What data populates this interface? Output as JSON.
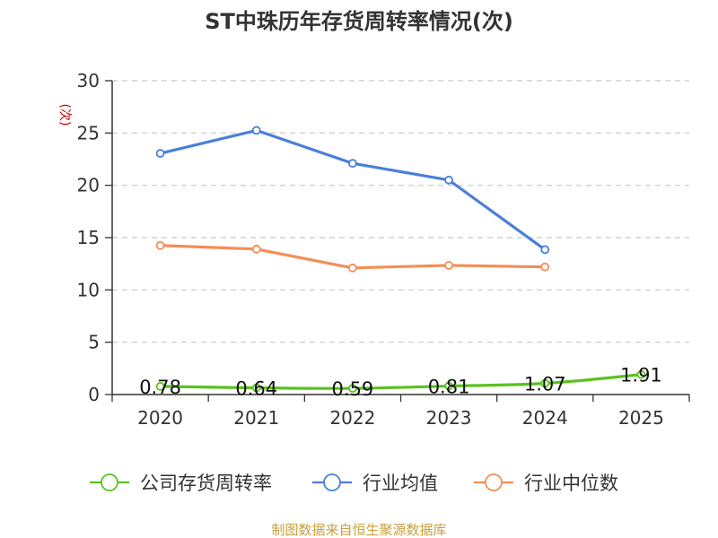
{
  "chart_data": {
    "type": "line",
    "title": "ST中珠历年存货周转率情况(次)",
    "ylabel": "(次)",
    "xlabel": "",
    "categories": [
      "2020",
      "2021",
      "2022",
      "2023",
      "2024",
      "2025"
    ],
    "ylim": [
      0,
      30
    ],
    "yticks": [
      0,
      5,
      10,
      15,
      20,
      25,
      30
    ],
    "grid": true,
    "legend_position": "bottom",
    "series": [
      {
        "name": "公司存货周转率",
        "color": "#5ac21e",
        "values": [
          0.78,
          0.64,
          0.59,
          0.81,
          1.07,
          1.91
        ],
        "labels": [
          "0.78",
          "0.64",
          "0.59",
          "0.81",
          "1.07",
          "1.91"
        ],
        "show_labels": true,
        "smooth": true
      },
      {
        "name": "行业均值",
        "color": "#4a7fd8",
        "values": [
          23.05,
          25.25,
          22.1,
          20.5,
          13.85,
          null
        ]
      },
      {
        "name": "行业中位数",
        "color": "#f58d55",
        "values": [
          14.25,
          13.9,
          12.1,
          12.35,
          12.2,
          null
        ]
      }
    ],
    "source": "制图数据来自恒生聚源数据库"
  }
}
